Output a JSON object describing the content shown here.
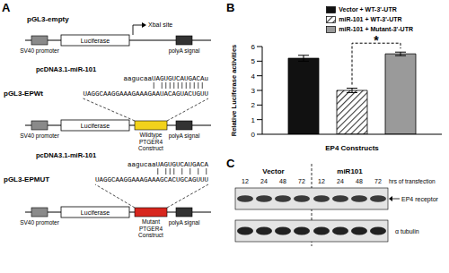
{
  "panel_labels": [
    "A",
    "B",
    "C"
  ],
  "panel_A": {
    "constructs": [
      {
        "name": "pGL3-empty",
        "promoter": "SV40 promoter",
        "reporter": "Luciferase",
        "polyA": "polyA signal",
        "site": "XbaI site"
      },
      {
        "name": "pGL3-EPWt",
        "promoter": "SV40 promoter",
        "reporter": "Luciferase",
        "polyA": "polyA signal",
        "insert": {
          "label": "Wildtype PTGER4 Construct",
          "color": "#f2d21b"
        },
        "mirna": {
          "name": "pcDNA3.1-miR-101",
          "sequence": "aagucaaUAGUGUCAUGACAu"
        },
        "target": "UAGGCAAGGAAAGAAAGAAUACAGUACUGUU"
      },
      {
        "name": "pGL3-EPMUT",
        "promoter": "SV40 promoter",
        "reporter": "Luciferase",
        "polyA": "polyA signal",
        "insert": {
          "label": "Mutant PTGER4 Construct",
          "color": "#d7261e"
        },
        "mirna": {
          "name": "pcDNA3.1-miR-101",
          "sequence": "aagucaaUAGUGUCAUGACA"
        },
        "target": "UAGGCAAGGAAAGAAAGCACUGCAGUUU"
      }
    ]
  },
  "chart_data": {
    "type": "bar",
    "categories": [
      null
    ],
    "series": [
      {
        "name": "Vector + WT-3'-UTR",
        "color": "#111111",
        "values": [
          5.2
        ],
        "errors": [
          0.2
        ]
      },
      {
        "name": "miR-101 + WT-3'-UTR",
        "color": "#333333",
        "values": [
          3.0
        ],
        "errors": [
          0.15
        ]
      },
      {
        "name": "miR-101 + Mutant-3'-UTR",
        "color": "#9a9a9a",
        "values": [
          5.5
        ],
        "errors": [
          0.12
        ]
      }
    ],
    "ylim": [
      0,
      6
    ],
    "yticks": [
      0,
      1,
      2,
      3,
      4,
      5,
      6
    ],
    "ylabel": "Relative Luciferase activities",
    "xlabel": "EP4 Constructs",
    "annotation": "*",
    "tick_labels": "y",
    "legend": "upper right"
  },
  "panel_C": {
    "groups": [
      {
        "name": "Vector",
        "lanes": [
          12,
          24,
          48,
          72
        ]
      },
      {
        "name": "miR101",
        "lanes": [
          12,
          24,
          48,
          72
        ]
      }
    ],
    "lane_unit": "hrs of transfection",
    "bands": [
      "EP4 receptor",
      "α tubulin"
    ]
  }
}
